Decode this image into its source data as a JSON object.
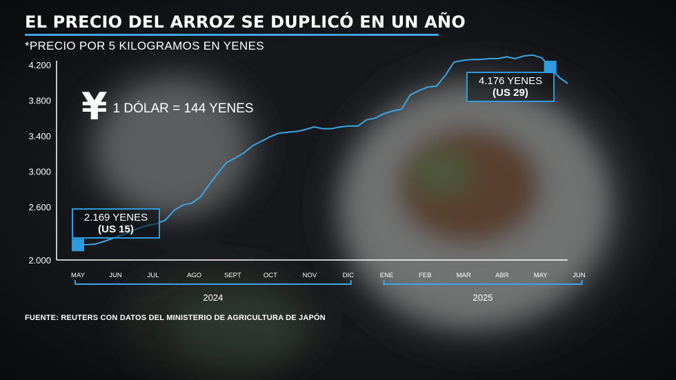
{
  "title": "EL PRECIO DEL ARROZ SE DUPLICÓ EN UN AÑO",
  "subtitle": "*PRECIO POR 5 KILOGRAMOS EN YENES",
  "source": "FUENTE: REUTERS CON DATOS DEL MINISTERIO DE AGRICULTURA DE JAPÓN",
  "exchange": {
    "icon": "yen-icon",
    "symbol": "¥",
    "label": "1 DÓLAR = 144 YENES"
  },
  "colors": {
    "line": "#3ba7ea",
    "marker": "#2e9be0",
    "axis": "#ffffff"
  },
  "callouts": {
    "start": {
      "value": "2.169 YENES",
      "usd": "(US 15)"
    },
    "end": {
      "value": "4.176 YENES",
      "usd": "(US 29)"
    }
  },
  "chart_data": {
    "type": "line",
    "title": "EL PRECIO DEL ARROZ SE DUPLICÓ EN UN AÑO",
    "ylim": [
      2000,
      4200
    ],
    "yticks": [
      2000,
      2600,
      3000,
      3400,
      3800,
      4200
    ],
    "ytick_labels": [
      "2.000",
      "2.600",
      "3.000",
      "3.400",
      "3.800",
      "4.200"
    ],
    "xlim": [
      0,
      56
    ],
    "x_ticks": [
      {
        "label": "MAY",
        "x": 0
      },
      {
        "label": "JUN",
        "x": 4.3
      },
      {
        "label": "JUL",
        "x": 8.6
      },
      {
        "label": "AGO",
        "x": 13.3
      },
      {
        "label": "SEPT",
        "x": 17.7
      },
      {
        "label": "OCT",
        "x": 22
      },
      {
        "label": "NOV",
        "x": 26.5
      },
      {
        "label": "DIC",
        "x": 30.9
      },
      {
        "label": "ENE",
        "x": 35.3
      },
      {
        "label": "FEB",
        "x": 39.7
      },
      {
        "label": "MAR",
        "x": 44.1
      },
      {
        "label": "ABR",
        "x": 48.5
      },
      {
        "label": "MAY",
        "x": 52.9
      },
      {
        "label": "JUN",
        "x": 57.3
      }
    ],
    "years": [
      {
        "label": "2024",
        "from": 0,
        "to": 30.9
      },
      {
        "label": "2025",
        "from": 35.3,
        "to": 57.3
      }
    ],
    "series": [
      {
        "x": [
          0,
          1,
          2,
          3,
          4,
          5,
          6,
          7,
          8,
          9,
          10,
          11,
          12,
          13,
          14,
          15,
          16,
          17,
          18,
          19,
          20,
          21,
          22,
          23,
          24,
          25,
          26,
          27,
          28,
          29,
          30,
          31,
          32,
          33,
          34,
          35,
          36,
          37,
          38,
          39,
          40,
          41,
          42,
          43,
          44,
          45,
          46,
          47,
          48,
          49,
          50,
          51,
          52,
          53,
          54,
          55,
          56
        ],
        "values": [
          2169,
          2173,
          2180,
          2210,
          2245,
          2280,
          2320,
          2360,
          2390,
          2410,
          2450,
          2560,
          2620,
          2640,
          2710,
          2850,
          2980,
          3100,
          3150,
          3210,
          3290,
          3340,
          3390,
          3430,
          3440,
          3450,
          3470,
          3500,
          3480,
          3480,
          3500,
          3510,
          3510,
          3580,
          3600,
          3650,
          3680,
          3700,
          3860,
          3910,
          3950,
          3960,
          4080,
          4230,
          4250,
          4260,
          4260,
          4270,
          4270,
          4290,
          4270,
          4300,
          4310,
          4280,
          4176,
          4060,
          3990
        ]
      }
    ],
    "highlights": [
      {
        "x": 0,
        "value": 2169
      },
      {
        "x": 54,
        "value": 4176
      }
    ]
  }
}
